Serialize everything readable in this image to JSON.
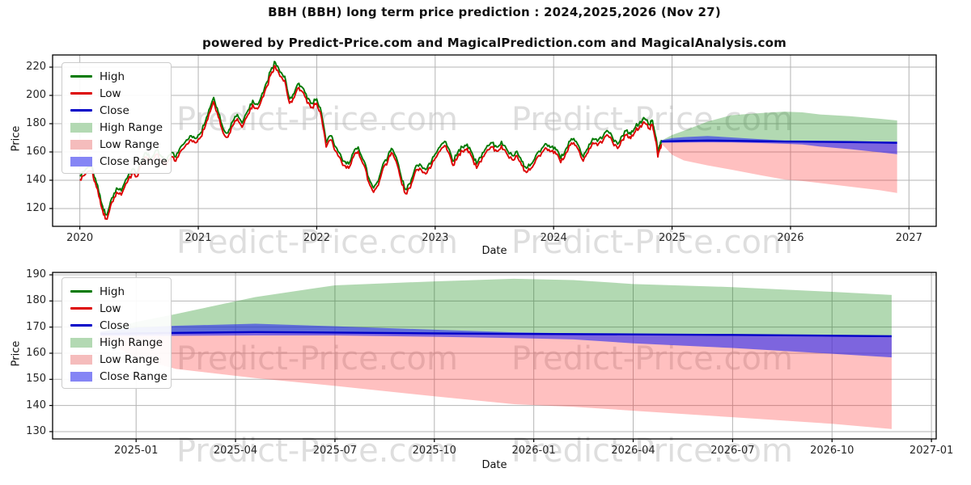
{
  "title": "BBH (BBH) long term price prediction : 2024,2025,2026 (Nov 27)",
  "subtitle": "powered by Predict-Price.com and MagicalPrediction.com and MagicalAnalysis.com",
  "watermark_text": "Predict-Price.com",
  "colors": {
    "high_line": "#007a00",
    "low_line": "#dd0000",
    "close_line": "#0000c8",
    "high_range_fill": "rgba(0,128,0,0.30)",
    "low_range_fill": "rgba(255,30,30,0.28)",
    "close_range_fill": "rgba(45,45,240,0.62)",
    "legend_high_range": "#b3d9b3",
    "legend_low_range": "#f5bcbc",
    "legend_close_range": "#8585f5",
    "grid": "#b4b4b4",
    "axis": "#000000"
  },
  "legend": [
    {
      "label": "High",
      "type": "line",
      "color": "#007a00"
    },
    {
      "label": "Low",
      "type": "line",
      "color": "#dd0000"
    },
    {
      "label": "Close",
      "type": "line",
      "color": "#0000c8"
    },
    {
      "label": "High Range",
      "type": "patch",
      "color": "#b3d9b3"
    },
    {
      "label": "Low Range",
      "type": "patch",
      "color": "#f5bcbc"
    },
    {
      "label": "Close Range",
      "type": "patch",
      "color": "#8585f5"
    }
  ],
  "chart_data": [
    {
      "type": "line",
      "title": "",
      "xlabel": "Date",
      "ylabel": "Price",
      "x_tick_labels": [
        "2020",
        "2021",
        "2022",
        "2023",
        "2024",
        "2025",
        "2026",
        "2027"
      ],
      "x_tick_values": [
        2020,
        2021,
        2022,
        2023,
        2024,
        2025,
        2026,
        2027
      ],
      "y_ticks": [
        120,
        140,
        160,
        180,
        200,
        220
      ],
      "xlim": [
        2019.77,
        2027.23
      ],
      "ylim": [
        107.4,
        228.6
      ],
      "grid": true,
      "legend_position": "upper-left",
      "history": {
        "note": "High and Low daily lines; High = mid + 1.5, Low = mid - 1.5",
        "high_offset": 1.5,
        "low_offset": -1.5,
        "x": [
          2020.0,
          2020.04,
          2020.1,
          2020.13,
          2020.17,
          2020.2,
          2020.23,
          2020.27,
          2020.31,
          2020.35,
          2020.4,
          2020.44,
          2020.48,
          2020.52,
          2020.56,
          2020.6,
          2020.65,
          2020.69,
          2020.73,
          2020.77,
          2020.81,
          2020.85,
          2020.9,
          2020.94,
          2020.98,
          2021.02,
          2021.06,
          2021.1,
          2021.13,
          2021.17,
          2021.21,
          2021.25,
          2021.29,
          2021.33,
          2021.37,
          2021.42,
          2021.46,
          2021.5,
          2021.54,
          2021.58,
          2021.62,
          2021.65,
          2021.69,
          2021.73,
          2021.77,
          2021.81,
          2021.85,
          2021.88,
          2021.92,
          2021.96,
          2022.0,
          2022.04,
          2022.08,
          2022.12,
          2022.15,
          2022.19,
          2022.23,
          2022.27,
          2022.31,
          2022.35,
          2022.4,
          2022.44,
          2022.48,
          2022.52,
          2022.56,
          2022.6,
          2022.63,
          2022.67,
          2022.71,
          2022.75,
          2022.79,
          2022.83,
          2022.87,
          2022.92,
          2022.96,
          2023.0,
          2023.04,
          2023.08,
          2023.12,
          2023.15,
          2023.19,
          2023.23,
          2023.27,
          2023.31,
          2023.35,
          2023.4,
          2023.44,
          2023.48,
          2023.52,
          2023.56,
          2023.6,
          2023.65,
          2023.69,
          2023.73,
          2023.77,
          2023.81,
          2023.85,
          2023.9,
          2023.94,
          2023.98,
          2024.02,
          2024.06,
          2024.1,
          2024.13,
          2024.17,
          2024.21,
          2024.25,
          2024.29,
          2024.33,
          2024.37,
          2024.42,
          2024.46,
          2024.5,
          2024.54,
          2024.58,
          2024.62,
          2024.65,
          2024.69,
          2024.73,
          2024.77,
          2024.81,
          2024.83,
          2024.85,
          2024.87,
          2024.88,
          2024.9,
          2024.91
        ],
        "mid": [
          142,
          145,
          148,
          140,
          128,
          117,
          114,
          126,
          133,
          131,
          140,
          146,
          144,
          152,
          158,
          154,
          160,
          155,
          152,
          158,
          155,
          162,
          167,
          170,
          168,
          172,
          180,
          190,
          197,
          186,
          175,
          172,
          180,
          185,
          179,
          188,
          195,
          192,
          200,
          208,
          218,
          222,
          215,
          212,
          196,
          200,
          207,
          204,
          196,
          193,
          196,
          186,
          165,
          170,
          163,
          158,
          152,
          150,
          158,
          162,
          152,
          140,
          133,
          138,
          150,
          155,
          161,
          155,
          142,
          132,
          136,
          147,
          150,
          146,
          150,
          157,
          162,
          166,
          160,
          152,
          158,
          162,
          164,
          158,
          150,
          158,
          163,
          165,
          162,
          166,
          161,
          156,
          159,
          152,
          147,
          150,
          156,
          161,
          164,
          162,
          160,
          154,
          160,
          166,
          168,
          163,
          155,
          161,
          168,
          166,
          170,
          173,
          168,
          164,
          170,
          174,
          171,
          176,
          180,
          182,
          178,
          181,
          174,
          166,
          158,
          164,
          167
        ]
      },
      "prediction": {
        "x": [
          2024.91,
          2025.0,
          2025.1,
          2025.3,
          2025.5,
          2025.75,
          2025.95,
          2026.1,
          2026.25,
          2026.5,
          2026.75,
          2026.9
        ],
        "close": [
          167.4,
          167.6,
          167.8,
          168.1,
          167.9,
          167.6,
          167.4,
          167.3,
          167.2,
          167.0,
          166.7,
          166.5
        ],
        "high_range_top": [
          168.0,
          172.0,
          175.0,
          181.5,
          186.0,
          187.5,
          188.5,
          188.0,
          186.5,
          185.3,
          183.5,
          182.3
        ],
        "low_range_bottom": [
          166.0,
          158.0,
          154.0,
          150.5,
          147.5,
          143.5,
          140.5,
          139.5,
          138.0,
          135.5,
          133.0,
          131.0
        ],
        "close_range_top": [
          168.3,
          169.8,
          170.5,
          171.3,
          170.3,
          169.0,
          168.0,
          167.6,
          167.4,
          167.2,
          166.9,
          166.7
        ],
        "close_range_bottom": [
          166.6,
          166.6,
          166.7,
          166.8,
          166.8,
          166.3,
          165.8,
          165.3,
          163.8,
          162.0,
          159.8,
          158.4
        ]
      }
    },
    {
      "type": "area",
      "title": "",
      "xlabel": "Date",
      "ylabel": "Price",
      "x_tick_labels": [
        "2025-01",
        "2025-04",
        "2025-07",
        "2025-10",
        "2026-01",
        "2026-04",
        "2026-07",
        "2026-10",
        "2027-01"
      ],
      "x_tick_values": [
        2025.0,
        2025.25,
        2025.5,
        2025.75,
        2026.0,
        2026.25,
        2026.5,
        2026.75,
        2027.0
      ],
      "y_ticks": [
        130,
        140,
        150,
        160,
        170,
        180,
        190
      ],
      "xlim": [
        2024.79,
        2027.012
      ],
      "ylim": [
        127.2,
        190.93
      ],
      "grid": true,
      "legend_position": "upper-left",
      "prediction": {
        "x": [
          2024.91,
          2025.0,
          2025.1,
          2025.3,
          2025.5,
          2025.75,
          2025.95,
          2026.1,
          2026.25,
          2026.5,
          2026.75,
          2026.9
        ],
        "close": [
          167.4,
          167.6,
          167.8,
          168.1,
          167.9,
          167.6,
          167.4,
          167.3,
          167.2,
          167.0,
          166.7,
          166.5
        ],
        "high_range_top": [
          168.0,
          172.0,
          175.0,
          181.5,
          186.0,
          187.5,
          188.5,
          188.0,
          186.5,
          185.3,
          183.5,
          182.3
        ],
        "low_range_bottom": [
          166.0,
          158.0,
          154.0,
          150.5,
          147.5,
          143.5,
          140.5,
          139.5,
          138.0,
          135.5,
          133.0,
          131.0
        ],
        "close_range_top": [
          168.3,
          169.8,
          170.5,
          171.3,
          170.3,
          169.0,
          168.0,
          167.6,
          167.4,
          167.2,
          166.9,
          166.7
        ],
        "close_range_bottom": [
          166.6,
          166.6,
          166.7,
          166.8,
          166.8,
          166.3,
          165.8,
          165.3,
          163.8,
          162.0,
          159.8,
          158.4
        ]
      }
    }
  ]
}
